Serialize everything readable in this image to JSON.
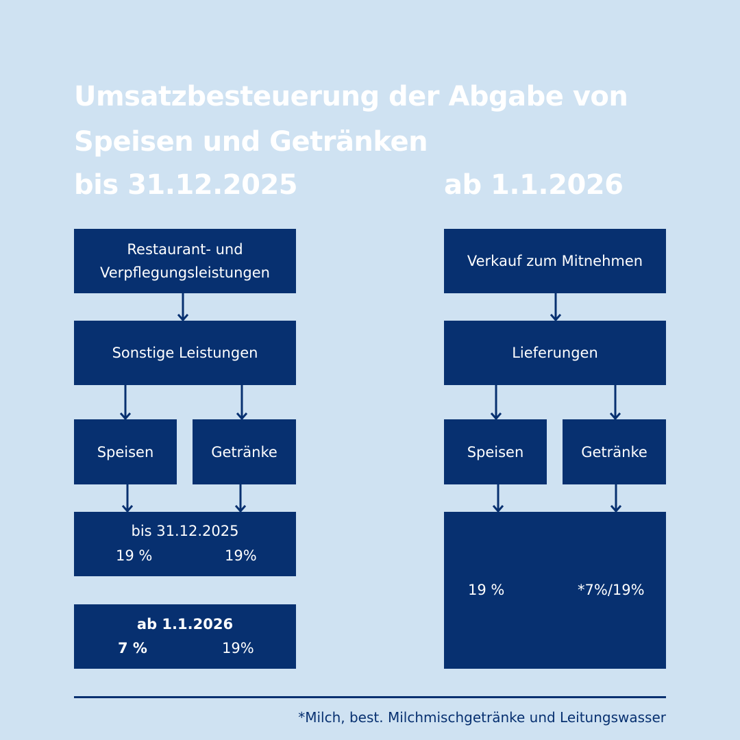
{
  "title": {
    "line1": "Umsatzbesteuerung der Abgabe von",
    "line2": "Speisen und Getränken"
  },
  "left": {
    "heading": "bis 31.12.2025",
    "box1": {
      "line1": "Restaurant- und",
      "line2": "Verpflegungsleistungen"
    },
    "box2": "Sonstige Leistungen",
    "speisen": "Speisen",
    "getraenke": "Getränke",
    "rates_old": {
      "label": "bis 31.12.2025",
      "speisen": "19 %",
      "getraenke": "19%"
    },
    "rates_new": {
      "label": "ab 1.1.2026",
      "speisen": "7 %",
      "getraenke": "19%"
    }
  },
  "right": {
    "heading": "ab 1.1.2026",
    "box1": "Verkauf zum Mitnehmen",
    "box2": "Lieferungen",
    "speisen": "Speisen",
    "getraenke": "Getränke",
    "rates": {
      "speisen": "19 %",
      "getraenke": "*7%/19%"
    }
  },
  "footnote": "*Milch, best. Milchmischgetränke und Leitungswasser",
  "colors": {
    "background": "#cfe2f2",
    "box": "#073070",
    "text": "#ffffff"
  }
}
